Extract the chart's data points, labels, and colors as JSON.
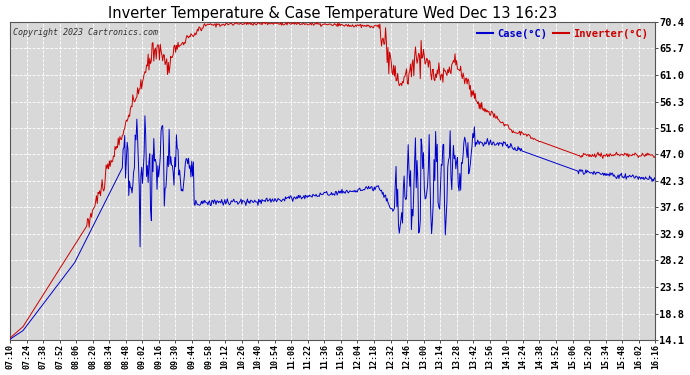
{
  "title": "Inverter Temperature & Case Temperature Wed Dec 13 16:23",
  "copyright": "Copyright 2023 Cartronics.com",
  "legend_case": "Case(°C)",
  "legend_inverter": "Inverter(°C)",
  "yticks": [
    14.1,
    18.8,
    23.5,
    28.2,
    32.9,
    37.6,
    42.3,
    47.0,
    51.6,
    56.3,
    61.0,
    65.7,
    70.4
  ],
  "ymin": 14.1,
  "ymax": 70.4,
  "bg_color": "#ffffff",
  "plot_bg_color": "#d8d8d8",
  "grid_color": "#ffffff",
  "inverter_color": "#cc0000",
  "case_color": "#0000cc",
  "title_color": "#000000",
  "copyright_color": "#333333",
  "xtick_labels": [
    "07:10",
    "07:24",
    "07:38",
    "07:52",
    "08:06",
    "08:20",
    "08:34",
    "08:48",
    "09:02",
    "09:16",
    "09:30",
    "09:44",
    "09:58",
    "10:12",
    "10:26",
    "10:40",
    "10:54",
    "11:08",
    "11:22",
    "11:36",
    "11:50",
    "12:04",
    "12:18",
    "12:32",
    "12:46",
    "13:00",
    "13:14",
    "13:28",
    "13:42",
    "13:56",
    "14:10",
    "14:24",
    "14:38",
    "14:52",
    "15:06",
    "15:20",
    "15:34",
    "15:48",
    "16:02",
    "16:16"
  ],
  "figwidth": 6.9,
  "figheight": 3.75,
  "dpi": 100
}
